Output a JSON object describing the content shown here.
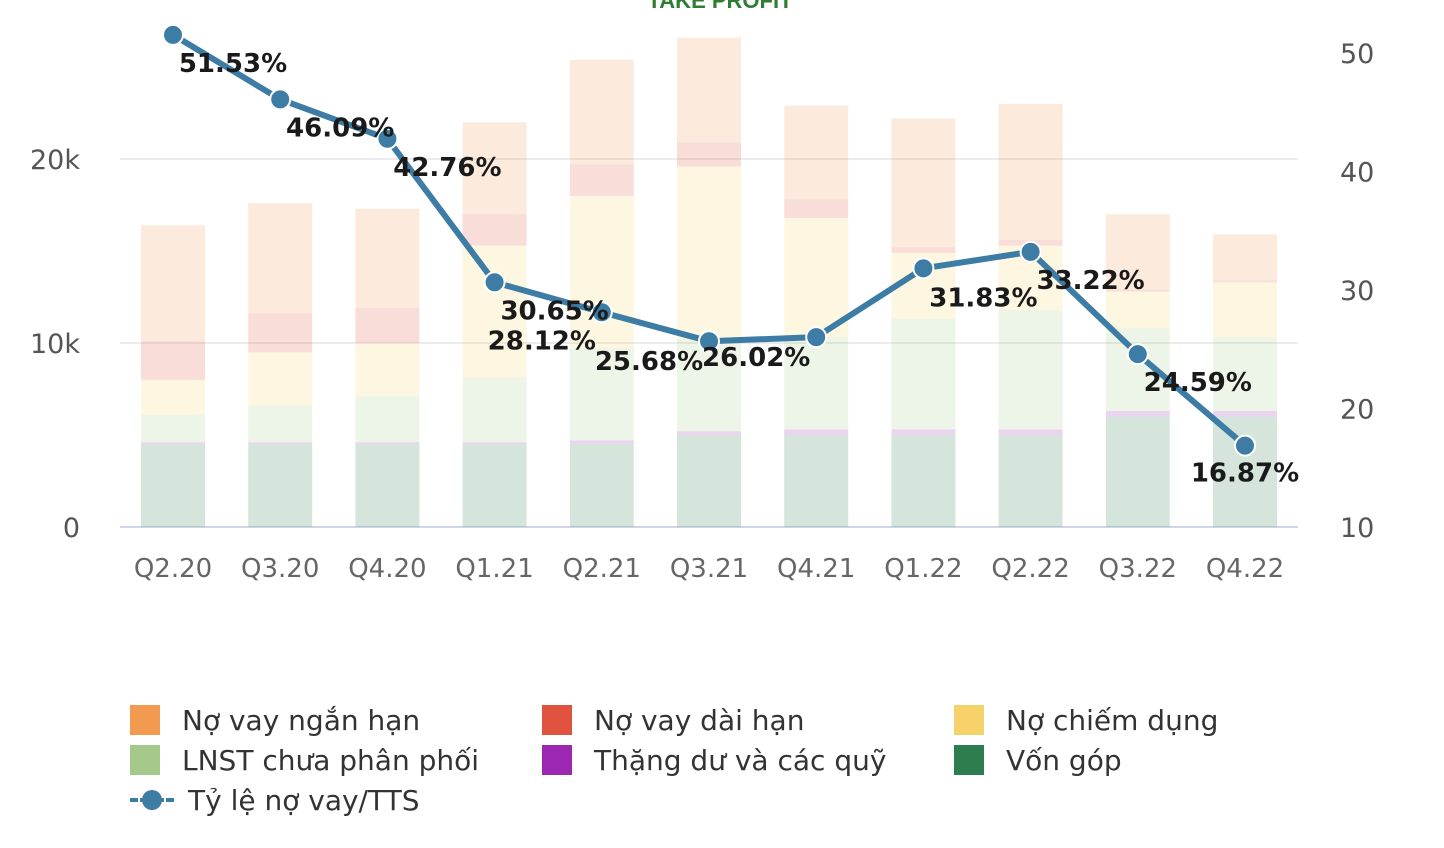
{
  "chart_data": {
    "type": "bar",
    "title": "TAKE PROFIT",
    "categories": [
      "Q2.20",
      "Q3.20",
      "Q4.20",
      "Q1.21",
      "Q2.21",
      "Q3.21",
      "Q4.21",
      "Q1.22",
      "Q2.22",
      "Q3.22",
      "Q4.22"
    ],
    "y_left": {
      "range": [
        0,
        26500
      ],
      "ticks": [
        0,
        10000,
        20000
      ],
      "tick_labels": [
        "0",
        "10k",
        "20k"
      ]
    },
    "y_right": {
      "range": [
        10,
        53
      ],
      "ticks": [
        10,
        20,
        30,
        40,
        50
      ],
      "tick_labels": [
        "10",
        "20",
        "30",
        "40",
        "50"
      ]
    },
    "grid": true,
    "legend_position": "bottom",
    "stacked_series": [
      {
        "name": "Vốn góp",
        "color": "#2e7d4f",
        "values": [
          4500,
          4500,
          4500,
          4500,
          4500,
          5000,
          5000,
          5000,
          5000,
          6000,
          6000
        ]
      },
      {
        "name": "Thặng dư và các quỹ",
        "color": "#9c27b0",
        "values": [
          100,
          100,
          100,
          100,
          200,
          200,
          300,
          300,
          300,
          300,
          300
        ]
      },
      {
        "name": "LNST chưa phân phối",
        "color": "#a5c98a",
        "values": [
          1500,
          2000,
          2500,
          3500,
          5000,
          5000,
          5000,
          6000,
          6500,
          4500,
          4000
        ]
      },
      {
        "name": "Nợ chiếm dụng",
        "color": "#f5d36a",
        "values": [
          1900,
          2900,
          2900,
          7200,
          8300,
          9400,
          6500,
          3600,
          3500,
          2000,
          3000
        ]
      },
      {
        "name": "Nợ vay dài hạn",
        "color": "#e0533f",
        "values": [
          2100,
          2100,
          1900,
          1700,
          1700,
          1300,
          1000,
          300,
          300,
          100,
          100
        ]
      },
      {
        "name": "Nợ vay ngắn hạn",
        "color": "#f29a50",
        "values": [
          6300,
          6000,
          5400,
          5000,
          5700,
          5700,
          5100,
          7000,
          7400,
          4100,
          2500
        ]
      }
    ],
    "line_series": {
      "name": "Tỷ lệ nợ vay/TTS",
      "color": "#3d7ca5",
      "axis": "right",
      "values": [
        51.53,
        46.09,
        42.76,
        30.65,
        28.12,
        25.68,
        26.02,
        31.83,
        33.22,
        24.59,
        16.87
      ],
      "labels": [
        "51.53%",
        "46.09%",
        "42.76%",
        "30.65%",
        "28.12%",
        "25.68%",
        "26.02%",
        "31.83%",
        "33.22%",
        "24.59%",
        "16.87%"
      ]
    },
    "legend": [
      [
        "Nợ vay ngắn hạn",
        "Nợ vay dài hạn",
        "Nợ chiếm dụng"
      ],
      [
        "LNST chưa phân phối",
        "Thặng dư và các quỹ",
        "Vốn góp"
      ],
      [
        "Tỷ lệ nợ vay/TTS"
      ]
    ]
  }
}
